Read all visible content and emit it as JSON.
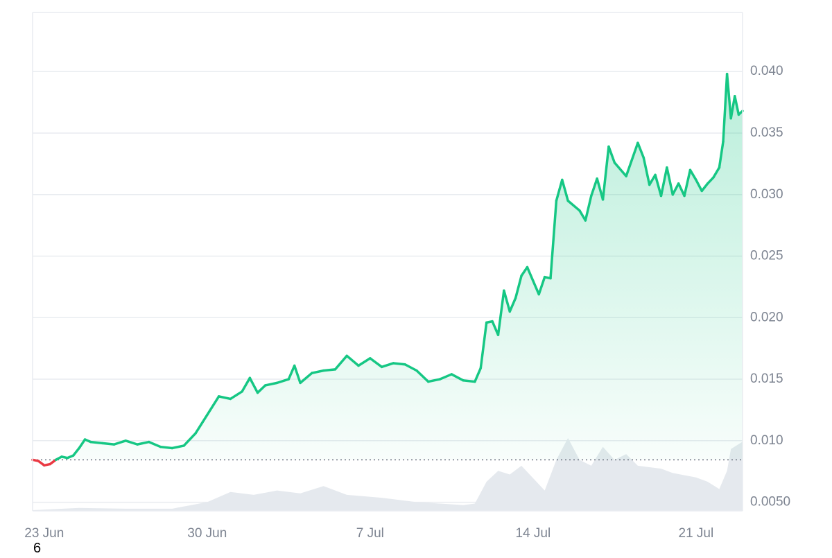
{
  "corner_label": "6",
  "chart_data": {
    "type": "area",
    "title": "",
    "xlabel": "",
    "ylabel": "",
    "x_ticks": [
      "23 Jun",
      "30 Jun",
      "7 Jul",
      "14 Jul",
      "21 Jul"
    ],
    "y_ticks": [
      {
        "value": 0.005,
        "label": "0.0050"
      },
      {
        "value": 0.01,
        "label": "0.010"
      },
      {
        "value": 0.015,
        "label": "0.015"
      },
      {
        "value": 0.02,
        "label": "0.020"
      },
      {
        "value": 0.025,
        "label": "0.025"
      },
      {
        "value": 0.03,
        "label": "0.030"
      },
      {
        "value": 0.035,
        "label": "0.035"
      },
      {
        "value": 0.04,
        "label": "0.040"
      }
    ],
    "x_range": [
      "2024-06-22",
      "2024-07-22 12:00"
    ],
    "ylim": [
      0.0043,
      0.0448
    ],
    "baseline_price": 0.00845,
    "grid": true,
    "legend": "none",
    "colors": {
      "up": "#16c784",
      "down": "#ea3943",
      "volume": "#e5e9ee",
      "grid": "#e9ecf0",
      "baseline": "#6b7280"
    },
    "series": [
      {
        "values": [
          [
            "2024-06-22 00:00",
            0.00845
          ],
          [
            "2024-06-22 06:00",
            0.00835
          ],
          [
            "2024-06-22 12:00",
            0.008
          ],
          [
            "2024-06-22 18:00",
            0.0081
          ],
          [
            "2024-06-23 00:00",
            0.00845
          ],
          [
            "2024-06-23 06:00",
            0.0087
          ],
          [
            "2024-06-23 12:00",
            0.0086
          ],
          [
            "2024-06-23 18:00",
            0.0088
          ],
          [
            "2024-06-24 00:00",
            0.0094
          ],
          [
            "2024-06-24 06:00",
            0.0101
          ],
          [
            "2024-06-24 12:00",
            0.0099
          ],
          [
            "2024-06-25 00:00",
            0.0098
          ],
          [
            "2024-06-25 12:00",
            0.0097
          ],
          [
            "2024-06-26 00:00",
            0.01
          ],
          [
            "2024-06-26 12:00",
            0.0097
          ],
          [
            "2024-06-27 00:00",
            0.0099
          ],
          [
            "2024-06-27 12:00",
            0.0095
          ],
          [
            "2024-06-28 00:00",
            0.0094
          ],
          [
            "2024-06-28 12:00",
            0.0096
          ],
          [
            "2024-06-29 00:00",
            0.0106
          ],
          [
            "2024-06-29 12:00",
            0.0121
          ],
          [
            "2024-06-30 00:00",
            0.0136
          ],
          [
            "2024-06-30 12:00",
            0.0134
          ],
          [
            "2024-07-01 00:00",
            0.014
          ],
          [
            "2024-07-01 08:00",
            0.0151
          ],
          [
            "2024-07-01 16:00",
            0.0139
          ],
          [
            "2024-07-02 00:00",
            0.0145
          ],
          [
            "2024-07-02 12:00",
            0.0147
          ],
          [
            "2024-07-03 00:00",
            0.015
          ],
          [
            "2024-07-03 06:00",
            0.0161
          ],
          [
            "2024-07-03 12:00",
            0.0147
          ],
          [
            "2024-07-04 00:00",
            0.0155
          ],
          [
            "2024-07-04 12:00",
            0.0157
          ],
          [
            "2024-07-05 00:00",
            0.0158
          ],
          [
            "2024-07-05 12:00",
            0.0169
          ],
          [
            "2024-07-06 00:00",
            0.0161
          ],
          [
            "2024-07-06 12:00",
            0.0167
          ],
          [
            "2024-07-07 00:00",
            0.016
          ],
          [
            "2024-07-07 12:00",
            0.0163
          ],
          [
            "2024-07-08 00:00",
            0.0162
          ],
          [
            "2024-07-08 12:00",
            0.0157
          ],
          [
            "2024-07-09 00:00",
            0.0148
          ],
          [
            "2024-07-09 12:00",
            0.015
          ],
          [
            "2024-07-10 00:00",
            0.0154
          ],
          [
            "2024-07-10 12:00",
            0.0149
          ],
          [
            "2024-07-11 00:00",
            0.0148
          ],
          [
            "2024-07-11 06:00",
            0.0159
          ],
          [
            "2024-07-11 12:00",
            0.0196
          ],
          [
            "2024-07-11 18:00",
            0.0197
          ],
          [
            "2024-07-12 00:00",
            0.0186
          ],
          [
            "2024-07-12 06:00",
            0.0222
          ],
          [
            "2024-07-12 12:00",
            0.0205
          ],
          [
            "2024-07-12 18:00",
            0.0216
          ],
          [
            "2024-07-13 00:00",
            0.0234
          ],
          [
            "2024-07-13 06:00",
            0.0241
          ],
          [
            "2024-07-13 12:00",
            0.023
          ],
          [
            "2024-07-13 18:00",
            0.0219
          ],
          [
            "2024-07-14 00:00",
            0.0233
          ],
          [
            "2024-07-14 06:00",
            0.0232
          ],
          [
            "2024-07-14 12:00",
            0.0295
          ],
          [
            "2024-07-14 18:00",
            0.0312
          ],
          [
            "2024-07-15 00:00",
            0.0295
          ],
          [
            "2024-07-15 12:00",
            0.0287
          ],
          [
            "2024-07-15 18:00",
            0.0279
          ],
          [
            "2024-07-16 00:00",
            0.0299
          ],
          [
            "2024-07-16 06:00",
            0.0313
          ],
          [
            "2024-07-16 12:00",
            0.0296
          ],
          [
            "2024-07-16 18:00",
            0.0339
          ],
          [
            "2024-07-17 00:00",
            0.0326
          ],
          [
            "2024-07-17 12:00",
            0.0315
          ],
          [
            "2024-07-18 00:00",
            0.0342
          ],
          [
            "2024-07-18 06:00",
            0.033
          ],
          [
            "2024-07-18 12:00",
            0.0308
          ],
          [
            "2024-07-18 18:00",
            0.0316
          ],
          [
            "2024-07-19 00:00",
            0.0299
          ],
          [
            "2024-07-19 06:00",
            0.0322
          ],
          [
            "2024-07-19 12:00",
            0.03
          ],
          [
            "2024-07-19 18:00",
            0.0309
          ],
          [
            "2024-07-20 00:00",
            0.0299
          ],
          [
            "2024-07-20 06:00",
            0.032
          ],
          [
            "2024-07-20 12:00",
            0.0312
          ],
          [
            "2024-07-20 18:00",
            0.0303
          ],
          [
            "2024-07-21 00:00",
            0.0309
          ],
          [
            "2024-07-21 06:00",
            0.0314
          ],
          [
            "2024-07-21 12:00",
            0.0322
          ],
          [
            "2024-07-21 16:00",
            0.0343
          ],
          [
            "2024-07-21 20:00",
            0.0398
          ],
          [
            "2024-07-22 00:00",
            0.0362
          ],
          [
            "2024-07-22 04:00",
            0.038
          ],
          [
            "2024-07-22 08:00",
            0.0365
          ],
          [
            "2024-07-22 12:00",
            0.0368
          ]
        ]
      }
    ],
    "volume_relative": [
      [
        "2024-06-22 00:00",
        0.01
      ],
      [
        "2024-06-24 00:00",
        0.04
      ],
      [
        "2024-06-26 00:00",
        0.03
      ],
      [
        "2024-06-28 00:00",
        0.03
      ],
      [
        "2024-06-29 12:00",
        0.12
      ],
      [
        "2024-06-30 12:00",
        0.26
      ],
      [
        "2024-07-01 12:00",
        0.22
      ],
      [
        "2024-07-02 12:00",
        0.28
      ],
      [
        "2024-07-03 12:00",
        0.24
      ],
      [
        "2024-07-04 12:00",
        0.34
      ],
      [
        "2024-07-05 12:00",
        0.22
      ],
      [
        "2024-07-07 00:00",
        0.18
      ],
      [
        "2024-07-08 12:00",
        0.12
      ],
      [
        "2024-07-10 12:00",
        0.08
      ],
      [
        "2024-07-11 00:00",
        0.1
      ],
      [
        "2024-07-11 12:00",
        0.4
      ],
      [
        "2024-07-12 00:00",
        0.55
      ],
      [
        "2024-07-12 12:00",
        0.5
      ],
      [
        "2024-07-13 00:00",
        0.62
      ],
      [
        "2024-07-13 12:00",
        0.45
      ],
      [
        "2024-07-14 00:00",
        0.28
      ],
      [
        "2024-07-14 12:00",
        0.7
      ],
      [
        "2024-07-15 00:00",
        1.0
      ],
      [
        "2024-07-15 12:00",
        0.7
      ],
      [
        "2024-07-16 00:00",
        0.62
      ],
      [
        "2024-07-16 12:00",
        0.88
      ],
      [
        "2024-07-17 00:00",
        0.7
      ],
      [
        "2024-07-17 12:00",
        0.78
      ],
      [
        "2024-07-18 00:00",
        0.62
      ],
      [
        "2024-07-19 00:00",
        0.58
      ],
      [
        "2024-07-19 12:00",
        0.52
      ],
      [
        "2024-07-20 12:00",
        0.46
      ],
      [
        "2024-07-21 00:00",
        0.4
      ],
      [
        "2024-07-21 12:00",
        0.3
      ],
      [
        "2024-07-21 20:00",
        0.55
      ],
      [
        "2024-07-22 00:00",
        0.85
      ],
      [
        "2024-07-22 12:00",
        0.95
      ]
    ]
  }
}
